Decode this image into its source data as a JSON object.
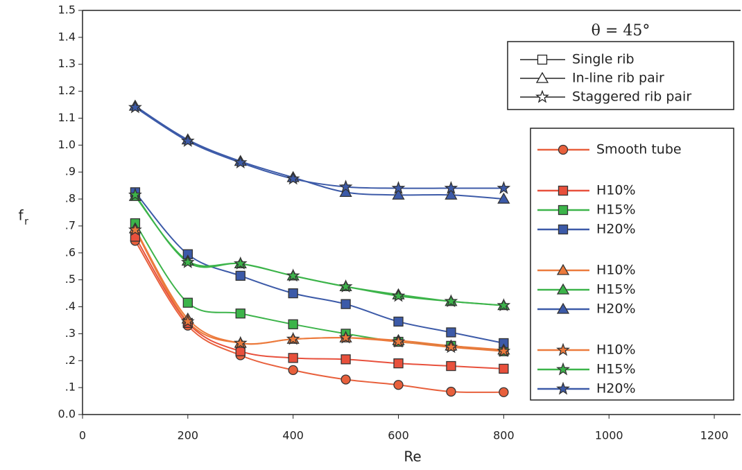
{
  "chart_data": {
    "type": "line",
    "x_label": "Re",
    "y_label": "f",
    "y_label_subscript": "r",
    "annotation": "θ = 45°",
    "xlim": [
      0,
      1250
    ],
    "xticks": [
      0,
      200,
      400,
      600,
      800,
      1000,
      1200
    ],
    "ylim": [
      0,
      1.5
    ],
    "yticks": [
      {
        "value": 0,
        "label": "0.0"
      },
      {
        "value": 0.1,
        "label": ".1"
      },
      {
        "value": 0.2,
        "label": ".2"
      },
      {
        "value": 0.3,
        "label": ".3"
      },
      {
        "value": 0.4,
        "label": ".4"
      },
      {
        "value": 0.5,
        "label": ".5"
      },
      {
        "value": 0.6,
        "label": ".6"
      },
      {
        "value": 0.7,
        "label": ".7"
      },
      {
        "value": 0.8,
        "label": ".8"
      },
      {
        "value": 0.9,
        "label": ".9"
      },
      {
        "value": 1,
        "label": "1.0"
      },
      1.1,
      1.2,
      1.3,
      1.4,
      1.5
    ],
    "marker_legend": [
      {
        "name": "Single rib",
        "marker": "square"
      },
      {
        "name": "In-line rib pair",
        "marker": "triangle"
      },
      {
        "name": "Staggered rib pair",
        "marker": "star"
      }
    ],
    "x": [
      100,
      200,
      300,
      400,
      500,
      600,
      700,
      800
    ],
    "series": [
      {
        "name": "Smooth tube",
        "marker": "circle",
        "color": "#e8603c",
        "values": [
          0.645,
          0.33,
          0.22,
          0.165,
          0.13,
          0.11,
          0.085,
          0.083
        ]
      },
      {
        "name": "H10%",
        "marker": "square",
        "color": "#e8503c",
        "values": [
          0.66,
          0.34,
          0.235,
          0.21,
          0.205,
          0.19,
          0.18,
          0.17
        ]
      },
      {
        "name": "H15%",
        "marker": "square",
        "color": "#3cb44a",
        "values": [
          0.71,
          0.415,
          0.375,
          0.335,
          0.3,
          0.27,
          0.255,
          0.235
        ]
      },
      {
        "name": "H20%",
        "marker": "square",
        "color": "#3c5aa8",
        "values": [
          0.825,
          0.595,
          0.515,
          0.45,
          0.41,
          0.345,
          0.305,
          0.265
        ]
      },
      {
        "name": "H10%",
        "marker": "triangle",
        "color": "#ec7a3c",
        "values": [
          0.69,
          0.355,
          0.265,
          0.28,
          0.285,
          0.275,
          0.255,
          0.24
        ]
      },
      {
        "name": "H15%",
        "marker": "triangle",
        "color": "#3cb44a",
        "values": [
          0.81,
          0.57,
          0.56,
          0.515,
          0.475,
          0.445,
          0.42,
          0.405
        ]
      },
      {
        "name": "H20%",
        "marker": "triangle",
        "color": "#3c5aa8",
        "values": [
          1.145,
          1.02,
          0.94,
          0.88,
          0.825,
          0.815,
          0.815,
          0.8
        ]
      },
      {
        "name": "H10%",
        "marker": "star",
        "color": "#ec7a3c",
        "values": [
          0.685,
          0.345,
          0.265,
          0.28,
          0.285,
          0.27,
          0.25,
          0.235
        ]
      },
      {
        "name": "H15%",
        "marker": "star",
        "color": "#3cb44a",
        "values": [
          0.815,
          0.565,
          0.56,
          0.515,
          0.475,
          0.44,
          0.42,
          0.405
        ]
      },
      {
        "name": "H20%",
        "marker": "star",
        "color": "#3c5aa8",
        "values": [
          1.14,
          1.015,
          0.935,
          0.875,
          0.845,
          0.84,
          0.84,
          0.84
        ]
      }
    ]
  }
}
